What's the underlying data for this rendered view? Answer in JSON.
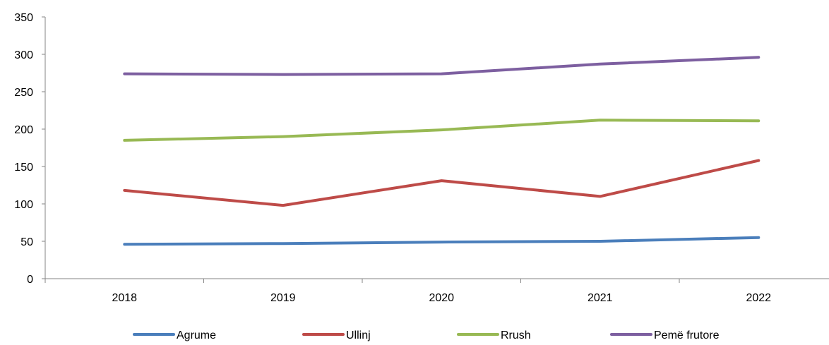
{
  "chart_data": {
    "type": "line",
    "title": "",
    "xlabel": "",
    "ylabel": "",
    "categories": [
      "2018",
      "2019",
      "2020",
      "2021",
      "2022"
    ],
    "ylim": [
      0,
      350
    ],
    "yticks": [
      0,
      50,
      100,
      150,
      200,
      250,
      300,
      350
    ],
    "grid": false,
    "legend_position": "bottom",
    "series": [
      {
        "name": "Agrume",
        "color": "#4a7ebb",
        "values": [
          46,
          47,
          49,
          50,
          55
        ]
      },
      {
        "name": "Ullinj",
        "color": "#be4b48",
        "values": [
          118,
          98,
          131,
          110,
          158
        ]
      },
      {
        "name": "Rrush",
        "color": "#98b954",
        "values": [
          185,
          190,
          199,
          212,
          211
        ]
      },
      {
        "name": "Pemë frutore",
        "color": "#7d5fa0",
        "values": [
          274,
          273,
          274,
          287,
          296
        ]
      }
    ]
  }
}
